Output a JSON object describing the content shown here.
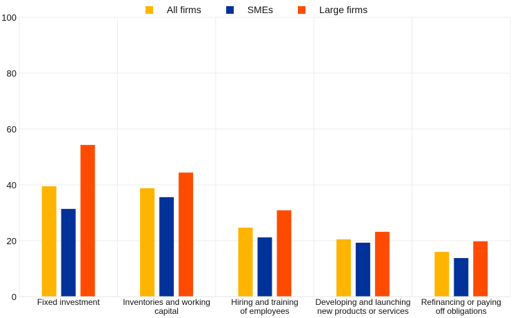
{
  "chart_data": {
    "type": "bar",
    "title": "",
    "xlabel": "",
    "ylabel": "",
    "ylim": [
      0,
      100
    ],
    "yticks": [
      0,
      20,
      40,
      60,
      80,
      100
    ],
    "grid": true,
    "legend_position": "top-center",
    "categories": [
      [
        "Fixed investment"
      ],
      [
        "Inventories and working",
        "capital"
      ],
      [
        "Hiring and training",
        "of employees"
      ],
      [
        "Developing and launching",
        "new products or services"
      ],
      [
        "Refinancing or paying",
        "off obligations"
      ]
    ],
    "series": [
      {
        "name": "All firms",
        "color": "#FFB400",
        "values": [
          39.5,
          38.8,
          24.7,
          20.5,
          16.0
        ]
      },
      {
        "name": "SMEs",
        "color": "#003299",
        "values": [
          31.4,
          35.6,
          21.2,
          19.3,
          13.8
        ]
      },
      {
        "name": "Large firms",
        "color": "#FF4B00",
        "values": [
          54.3,
          44.4,
          30.9,
          23.2,
          19.8
        ]
      }
    ]
  }
}
